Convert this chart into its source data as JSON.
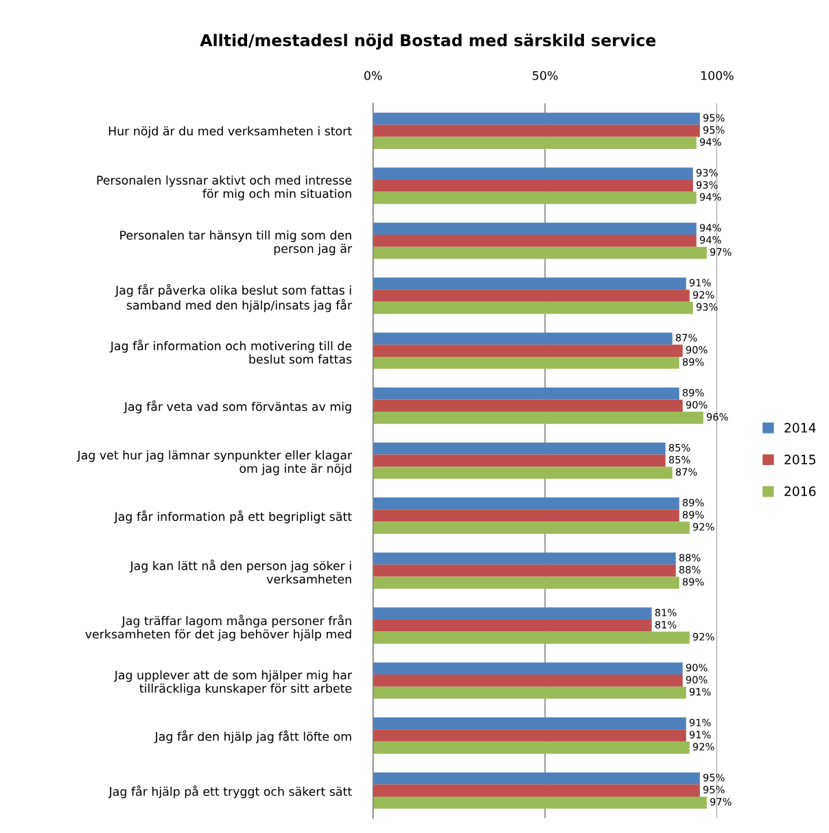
{
  "chart_data": {
    "type": "bar",
    "orientation": "horizontal",
    "title": "Alltid/mestadesl nöjd Bostad med särskild service",
    "categories": [
      "Hur nöjd är du med verksamheten i stort",
      "Personalen lyssnar aktivt och med intresse\nför mig och min situation",
      "Personalen tar hänsyn till mig som den\nperson jag är",
      "Jag får påverka olika beslut som fattas i\nsamband med den hjälp/insats jag får",
      "Jag får information och motivering till de\nbeslut som fattas",
      "Jag får veta vad som förväntas av mig",
      "Jag vet hur jag lämnar synpunkter eller klagar\nom jag inte är nöjd",
      "Jag får information på ett begripligt sätt",
      "Jag kan lätt nå den person jag söker i\nverksamheten",
      "Jag träffar lagom många personer från\nverksamheten för det jag behöver hjälp med",
      "Jag upplever att de som hjälper mig har\ntillräckliga kunskaper för sitt arbete",
      "Jag får den hjälp jag fått löfte om",
      "Jag får hjälp på ett tryggt och säkert sätt"
    ],
    "series": [
      {
        "name": "2014",
        "color": "#4f81bd",
        "values": [
          95,
          93,
          94,
          91,
          87,
          89,
          85,
          89,
          88,
          81,
          90,
          91,
          95
        ],
        "value_labels": [
          "95%",
          "93%",
          "94%",
          "91%",
          "87%",
          "89%",
          "85%",
          "89%",
          "88%",
          "81%",
          "90%",
          "91%",
          "95%"
        ]
      },
      {
        "name": "2015",
        "color": "#c0504d",
        "values": [
          95,
          93,
          94,
          92,
          90,
          90,
          85,
          89,
          88,
          81,
          90,
          91,
          95
        ],
        "value_labels": [
          "95%",
          "93%",
          "94%",
          "92%",
          "90%",
          "90%",
          "85%",
          "89%",
          "88%",
          "81%",
          "90%",
          "91%",
          "95%"
        ]
      },
      {
        "name": "2016",
        "color": "#9bbb59",
        "values": [
          94,
          94,
          97,
          93,
          89,
          96,
          87,
          92,
          89,
          92,
          91,
          92,
          97
        ],
        "value_labels": [
          "94%",
          "94%",
          "97%",
          "93%",
          "89%",
          "96%",
          "87%",
          "92%",
          "89%",
          "92%",
          "91%",
          "92%",
          "97%"
        ]
      }
    ],
    "xlim": [
      0,
      100
    ],
    "xticks": [
      {
        "value": 0,
        "label": "0%"
      },
      {
        "value": 50,
        "label": "50%"
      },
      {
        "value": 100,
        "label": "100%"
      }
    ],
    "grid": "x",
    "legend": "right"
  }
}
